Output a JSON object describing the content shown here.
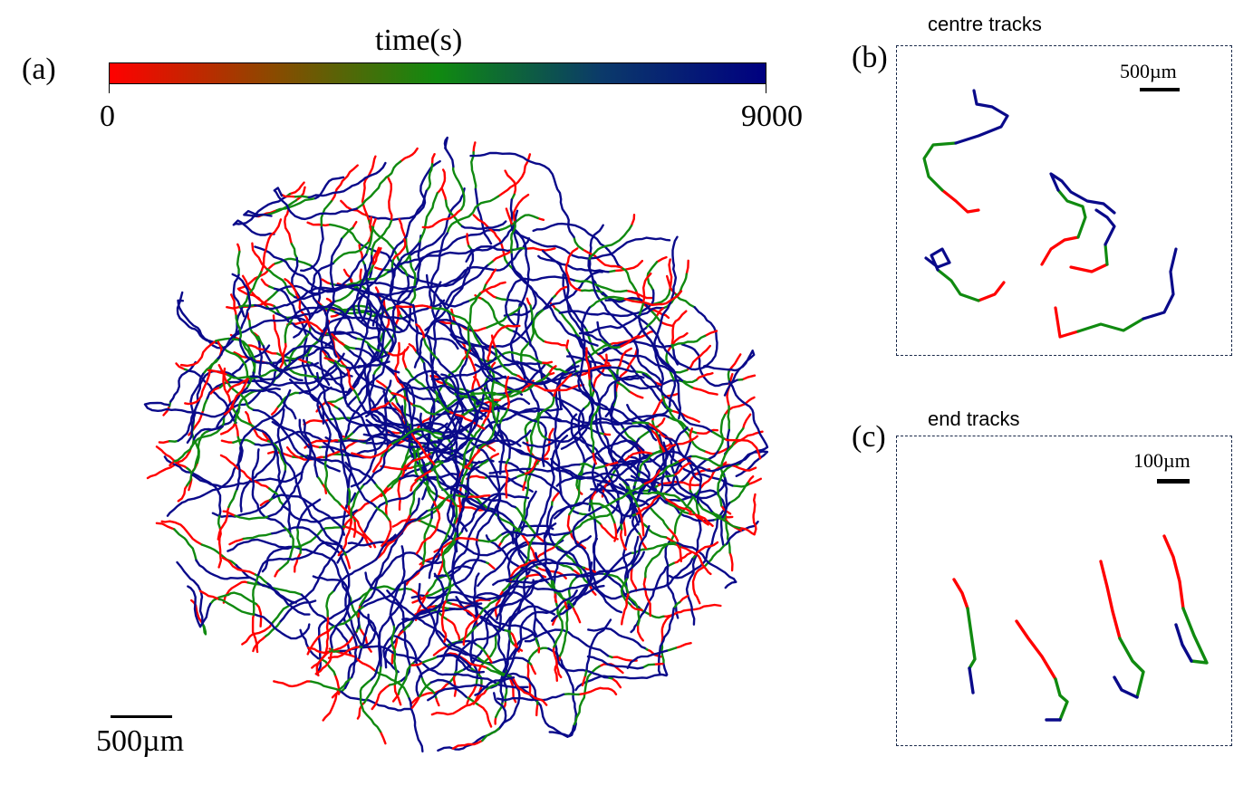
{
  "colors": {
    "start": "#ff0000",
    "mid": "#108a10",
    "end": "#0a0a8a",
    "frame": "#1a2a4a"
  },
  "panels": {
    "a": {
      "label": "(a)",
      "scale_text": "500µm"
    },
    "b": {
      "label": "(b)",
      "title": "centre tracks",
      "scale_text": "500µm"
    },
    "c": {
      "label": "(c)",
      "title": "end tracks",
      "scale_text": "100µm"
    }
  },
  "colorbar": {
    "title": "time(s)",
    "min_label": "0",
    "max_label": "9000",
    "min": 0,
    "max": 9000
  }
}
